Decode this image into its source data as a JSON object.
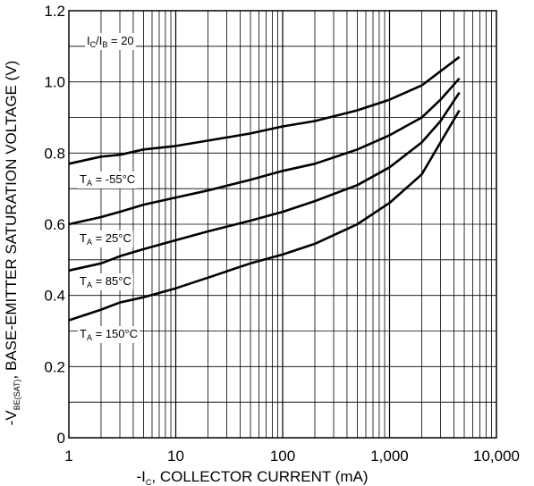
{
  "chart_data": {
    "type": "line",
    "title": "",
    "xlabel": "-I<sub>C</sub>, COLLECTOR CURRENT (mA)",
    "xlabel_main": "-I",
    "xlabel_sub": "C",
    "xlabel_rest": ", COLLECTOR CURRENT (mA)",
    "ylabel_main": "-V",
    "ylabel_sub": "BE(SAT)",
    "ylabel_rest": ", BASE-EMITTER SATURATION VOLTAGE (V)",
    "x_scale": "log",
    "xlim": [
      1,
      10000
    ],
    "ylim": [
      0,
      1.2
    ],
    "grid": true,
    "x_ticks": [
      1,
      10,
      100,
      1000,
      10000
    ],
    "x_tick_labels": [
      "1",
      "10",
      "100",
      "1,000",
      "10,000"
    ],
    "y_ticks": [
      0,
      0.2,
      0.4,
      0.6,
      0.8,
      1.0,
      1.2
    ],
    "y_tick_labels": [
      "0",
      "0.2",
      "0.4",
      "0.6",
      "0.8",
      "1.0",
      "1.2"
    ],
    "condition_label": {
      "main": "I",
      "sub1": "C",
      "slash": "/I",
      "sub2": "B",
      "rest": " = 20"
    },
    "series": [
      {
        "name_main": "T",
        "name_sub": "A",
        "name_rest": " = -55°C",
        "x": [
          1,
          2,
          3,
          5,
          10,
          20,
          50,
          100,
          200,
          500,
          1000,
          2000,
          3000,
          4500
        ],
        "y": [
          0.77,
          0.79,
          0.795,
          0.81,
          0.82,
          0.835,
          0.855,
          0.875,
          0.89,
          0.92,
          0.95,
          0.99,
          1.03,
          1.07
        ]
      },
      {
        "name_main": "T",
        "name_sub": "A",
        "name_rest": " = 25°C",
        "x": [
          1,
          2,
          3,
          5,
          10,
          20,
          50,
          100,
          200,
          500,
          1000,
          2000,
          3000,
          4500
        ],
        "y": [
          0.6,
          0.62,
          0.635,
          0.655,
          0.675,
          0.695,
          0.725,
          0.75,
          0.77,
          0.81,
          0.85,
          0.9,
          0.95,
          1.01
        ]
      },
      {
        "name_main": "T",
        "name_sub": "A",
        "name_rest": " = 85°C",
        "x": [
          1,
          2,
          3,
          5,
          10,
          20,
          50,
          100,
          200,
          500,
          1000,
          2000,
          3000,
          4500
        ],
        "y": [
          0.47,
          0.49,
          0.51,
          0.53,
          0.555,
          0.58,
          0.61,
          0.635,
          0.665,
          0.71,
          0.76,
          0.83,
          0.89,
          0.97
        ]
      },
      {
        "name_main": "T",
        "name_sub": "A",
        "name_rest": " = 150°C",
        "x": [
          1,
          2,
          3,
          5,
          10,
          20,
          50,
          100,
          200,
          500,
          1000,
          2000,
          3000,
          4500
        ],
        "y": [
          0.33,
          0.36,
          0.38,
          0.395,
          0.42,
          0.45,
          0.49,
          0.515,
          0.545,
          0.6,
          0.66,
          0.74,
          0.83,
          0.92
        ]
      }
    ]
  }
}
